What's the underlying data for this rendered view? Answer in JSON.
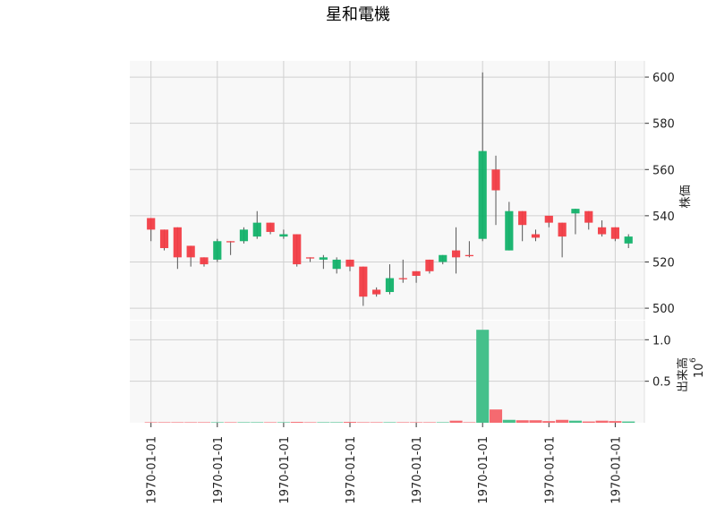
{
  "title": "星和電機",
  "chart_data": [
    {
      "type": "candlestick",
      "ylabel": "株価",
      "ylim": [
        495,
        607
      ],
      "yticks": [
        500,
        520,
        540,
        560,
        580,
        600
      ],
      "xtick_labels": [
        "1970-01-01",
        "1970-01-01",
        "1970-01-01",
        "1970-01-01",
        "1970-01-01",
        "1970-01-01",
        "1970-01-01",
        "1970-01-01"
      ],
      "grid": true,
      "up_color": "#12b26a",
      "down_color": "#f23c45",
      "candles": [
        {
          "o": 539,
          "h": 539,
          "l": 529,
          "c": 534
        },
        {
          "o": 534,
          "h": 534,
          "l": 525,
          "c": 526
        },
        {
          "o": 535,
          "h": 535,
          "l": 517,
          "c": 522
        },
        {
          "o": 527,
          "h": 527,
          "l": 518,
          "c": 522
        },
        {
          "o": 522,
          "h": 522,
          "l": 518,
          "c": 519
        },
        {
          "o": 521,
          "h": 530,
          "l": 520,
          "c": 529
        },
        {
          "o": 529,
          "h": 529,
          "l": 523,
          "c": 528.5
        },
        {
          "o": 529,
          "h": 535,
          "l": 528,
          "c": 534
        },
        {
          "o": 531,
          "h": 542,
          "l": 530,
          "c": 537
        },
        {
          "o": 537,
          "h": 537,
          "l": 532,
          "c": 533
        },
        {
          "o": 531,
          "h": 534,
          "l": 530,
          "c": 532
        },
        {
          "o": 532,
          "h": 532,
          "l": 518,
          "c": 519
        },
        {
          "o": 522,
          "h": 522,
          "l": 520,
          "c": 521.5
        },
        {
          "o": 521,
          "h": 523,
          "l": 517,
          "c": 522
        },
        {
          "o": 517,
          "h": 522,
          "l": 515,
          "c": 521
        },
        {
          "o": 521,
          "h": 521,
          "l": 516,
          "c": 518
        },
        {
          "o": 518,
          "h": 518,
          "l": 501,
          "c": 505
        },
        {
          "o": 508,
          "h": 509,
          "l": 505,
          "c": 506
        },
        {
          "o": 507,
          "h": 519,
          "l": 506,
          "c": 513
        },
        {
          "o": 513,
          "h": 521,
          "l": 511,
          "c": 512.5
        },
        {
          "o": 516,
          "h": 516,
          "l": 511,
          "c": 514
        },
        {
          "o": 521,
          "h": 521,
          "l": 515,
          "c": 516
        },
        {
          "o": 520,
          "h": 523,
          "l": 519,
          "c": 523
        },
        {
          "o": 525,
          "h": 535,
          "l": 515,
          "c": 522
        },
        {
          "o": 523,
          "h": 529,
          "l": 522,
          "c": 522.5
        },
        {
          "o": 530,
          "h": 602,
          "l": 529,
          "c": 568
        },
        {
          "o": 560,
          "h": 566,
          "l": 536,
          "c": 551
        },
        {
          "o": 525,
          "h": 546,
          "l": 525,
          "c": 542
        },
        {
          "o": 542,
          "h": 542,
          "l": 529,
          "c": 536
        },
        {
          "o": 532,
          "h": 534,
          "l": 529,
          "c": 530.5
        },
        {
          "o": 540,
          "h": 540,
          "l": 535,
          "c": 537
        },
        {
          "o": 537,
          "h": 537,
          "l": 522,
          "c": 531
        },
        {
          "o": 541,
          "h": 543,
          "l": 532,
          "c": 543
        },
        {
          "o": 542,
          "h": 542,
          "l": 534,
          "c": 537
        },
        {
          "o": 535,
          "h": 538,
          "l": 531,
          "c": 532
        },
        {
          "o": 535,
          "h": 535,
          "l": 529,
          "c": 530
        },
        {
          "o": 528,
          "h": 532,
          "l": 526,
          "c": 531
        }
      ]
    },
    {
      "type": "bar",
      "ylabel": "出来高",
      "scale_label": "10",
      "scale_exponent": "6",
      "ylim": [
        0,
        1.23
      ],
      "yticks": [
        0.5,
        1.0
      ],
      "grid": true,
      "values": [
        0.006,
        0.006,
        0.006,
        0.006,
        0.006,
        0.006,
        0.006,
        0.006,
        0.006,
        0.006,
        0.006,
        0.01,
        0.006,
        0.006,
        0.006,
        0.01,
        0.006,
        0.006,
        0.006,
        0.006,
        0.006,
        0.006,
        0.006,
        0.025,
        0.006,
        1.12,
        0.16,
        0.035,
        0.03,
        0.03,
        0.02,
        0.035,
        0.025,
        0.015,
        0.025,
        0.02,
        0.015
      ]
    }
  ]
}
